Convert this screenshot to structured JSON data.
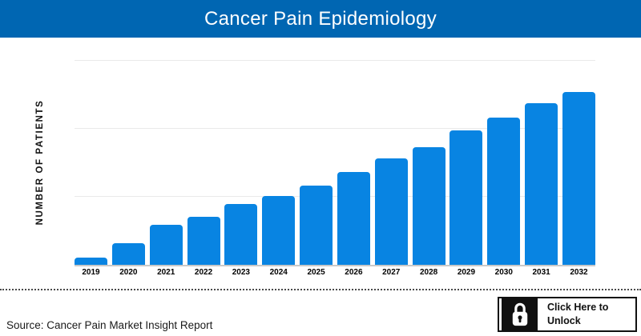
{
  "header": {
    "title": "Cancer Pain Epidemiology",
    "bg_color": "#0066b2",
    "text_color": "#ffffff"
  },
  "chart_data": {
    "type": "bar",
    "title": "Cancer Pain Epidemiology",
    "ylabel": "NUMBER OF PATIENTS",
    "xlabel": "",
    "categories": [
      "2019",
      "2020",
      "2021",
      "2022",
      "2023",
      "2024",
      "2025",
      "2026",
      "2027",
      "2028",
      "2029",
      "2030",
      "2031",
      "2032"
    ],
    "values_relative_height_pct": [
      3.7,
      10.4,
      19.7,
      23.6,
      29.6,
      33.6,
      38.8,
      45.3,
      51.9,
      57.4,
      65.6,
      71.9,
      78.9,
      84.4
    ],
    "yaxis_tick_labels": "hidden (data locked)",
    "bar_color": "#0884e2",
    "gridlines": true,
    "gridline_count": 3,
    "grid_color": "#eaeaea",
    "baseline_color": "#c9c9c9",
    "legend": false
  },
  "footer": {
    "source_text": "Source: Cancer Pain Market Insight Report",
    "unlock_button": {
      "line1": "Click Here to",
      "line2": "Unlock",
      "icon": "lock-icon"
    }
  }
}
